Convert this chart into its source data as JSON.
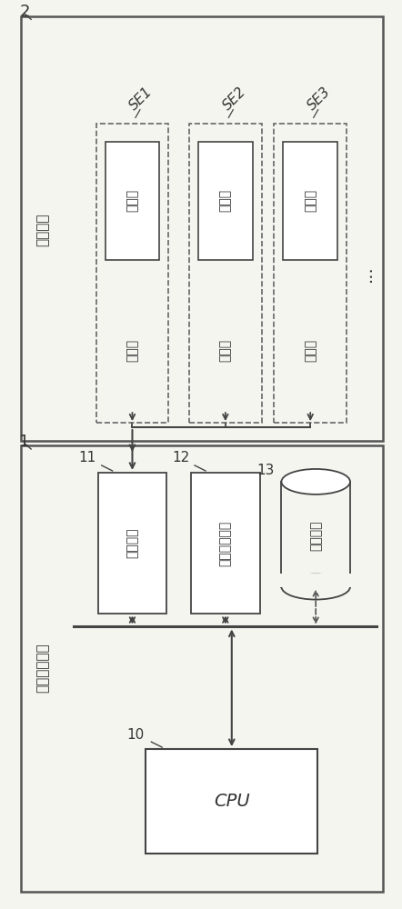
{
  "bg_color": "#f5f5f0",
  "line_color": "#444444",
  "text_color": "#333333",
  "fig_width": 4.42,
  "fig_height": 10.0,
  "label2": "2",
  "label1": "1",
  "label10": "10",
  "label11": "11",
  "label12": "12",
  "label13": "13",
  "se_labels": [
    "SE1",
    "SE2",
    "SE3"
  ],
  "vibration_system_label": "激振系统",
  "sensor_label": "传感器",
  "vibrator_label": "激振器",
  "anomaly_device_label": "异常感测装置",
  "connect_if_label": "连接接口",
  "io_device_label": "输入输出设备",
  "record_media_label": "记录介质",
  "cpu_label": "CPU",
  "dots": "···"
}
